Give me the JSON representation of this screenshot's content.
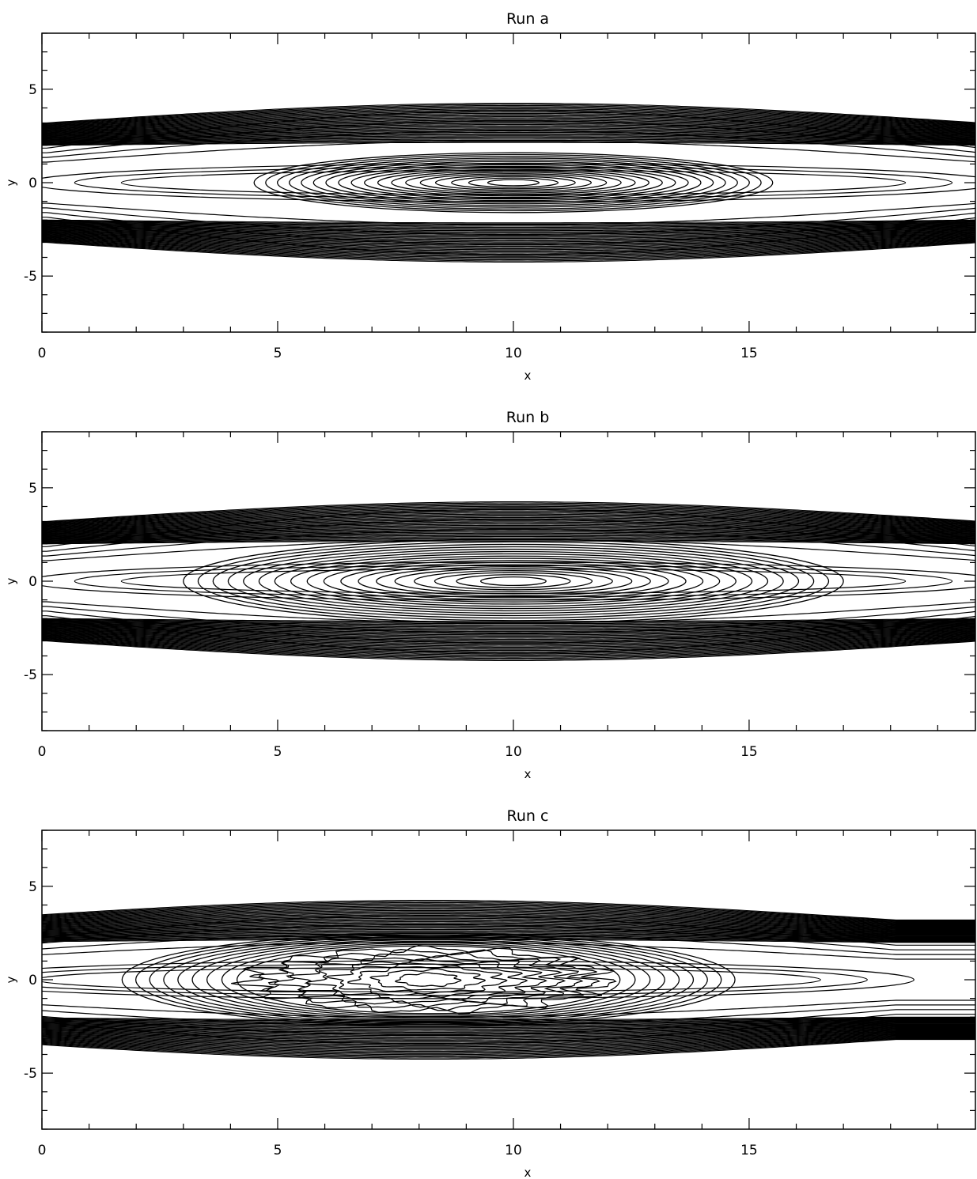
{
  "chart_data": [
    {
      "type": "contour",
      "title": "Run a",
      "xlabel": "x",
      "ylabel": "y",
      "xlim": [
        0,
        19.8
      ],
      "ylim": [
        -8,
        8
      ],
      "xticks": [
        "0",
        "5",
        "10",
        "15"
      ],
      "yticks": [
        "-5",
        "0",
        "5"
      ],
      "grid": false,
      "island_center": [
        10,
        0
      ],
      "island_half_width": [
        5.5,
        1.0
      ],
      "separatrix_y": 3.0,
      "outer_band_y": [
        2.0,
        4.2
      ]
    },
    {
      "type": "contour",
      "title": "Run b",
      "xlabel": "x",
      "ylabel": "y",
      "xlim": [
        0,
        19.8
      ],
      "ylim": [
        -8,
        8
      ],
      "xticks": [
        "0",
        "5",
        "10",
        "15"
      ],
      "yticks": [
        "-5",
        "0",
        "5"
      ],
      "grid": false,
      "island_center": [
        10,
        0
      ],
      "island_half_width": [
        7.0,
        1.4
      ],
      "separatrix_y": 3.0,
      "outer_band_y": [
        2.0,
        4.2
      ]
    },
    {
      "type": "contour",
      "title": "Run c",
      "xlabel": "x",
      "ylabel": "y",
      "xlim": [
        0,
        19.8
      ],
      "ylim": [
        -8,
        8
      ],
      "xticks": [
        "0",
        "5",
        "10",
        "15"
      ],
      "yticks": [
        "-5",
        "0",
        "5"
      ],
      "grid": false,
      "island_center": [
        8.2,
        0
      ],
      "island_half_width": [
        6.5,
        2.1
      ],
      "separatrix_y": 2.6,
      "outer_band_y": [
        2.0,
        4.2
      ],
      "turbulent_core": true
    }
  ]
}
